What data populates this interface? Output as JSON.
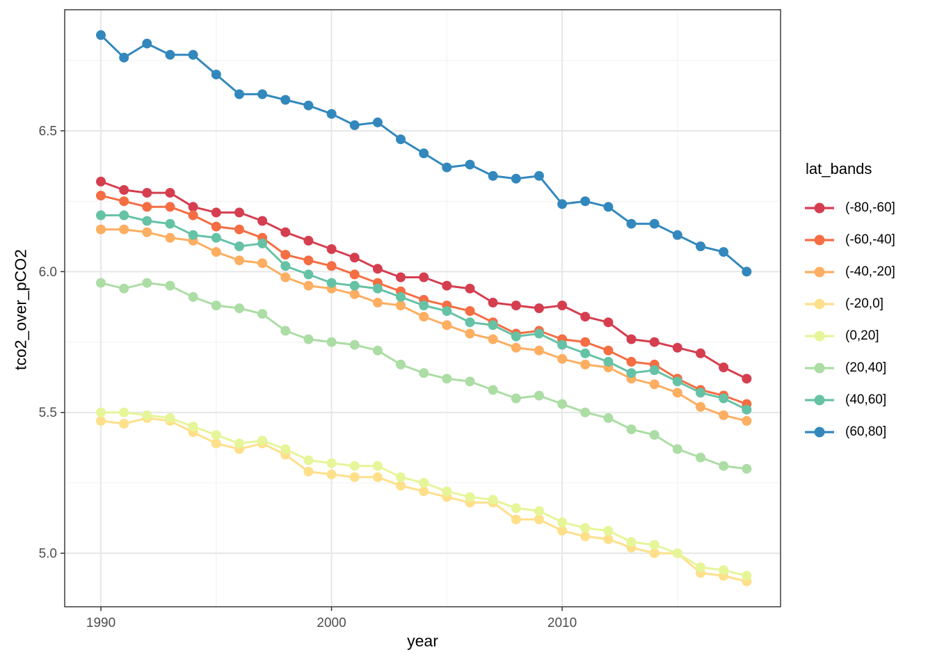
{
  "chart_data": {
    "type": "line",
    "title": "",
    "xlabel": "year",
    "ylabel": "tco2_over_pCO2",
    "legend_title": "lat_bands",
    "legend_position": "right",
    "grid": true,
    "marker": "circle",
    "xlim": [
      1988.43,
      2019.47
    ],
    "ylim": [
      4.81,
      6.93
    ],
    "x_ticks": [
      1990,
      2000,
      2010
    ],
    "x_tick_labels": [
      "1990",
      "2000",
      "2010"
    ],
    "x_minor": [
      1995,
      2005,
      2015
    ],
    "y_ticks": [
      5.0,
      5.5,
      6.0,
      6.5
    ],
    "y_tick_labels": [
      "5.0",
      "5.5",
      "6.0",
      "6.5"
    ],
    "y_minor": [
      5.25,
      5.75,
      6.25,
      6.75
    ],
    "x": [
      1990,
      1991,
      1992,
      1993,
      1994,
      1995,
      1996,
      1997,
      1998,
      1999,
      2000,
      2001,
      2002,
      2003,
      2004,
      2005,
      2006,
      2007,
      2008,
      2009,
      2010,
      2011,
      2012,
      2013,
      2014,
      2015,
      2016,
      2017,
      2018
    ],
    "series": [
      {
        "name": "(-80,-60]",
        "color": "#d53e4f",
        "values": [
          6.32,
          6.29,
          6.28,
          6.28,
          6.23,
          6.21,
          6.21,
          6.18,
          6.14,
          6.11,
          6.08,
          6.05,
          6.01,
          5.98,
          5.98,
          5.95,
          5.94,
          5.89,
          5.88,
          5.87,
          5.88,
          5.84,
          5.82,
          5.76,
          5.75,
          5.73,
          5.71,
          5.66,
          5.62
        ]
      },
      {
        "name": "(-60,-40]",
        "color": "#f46d43",
        "values": [
          6.27,
          6.25,
          6.23,
          6.23,
          6.2,
          6.16,
          6.15,
          6.12,
          6.06,
          6.04,
          6.02,
          5.99,
          5.96,
          5.93,
          5.9,
          5.88,
          5.86,
          5.82,
          5.78,
          5.79,
          5.76,
          5.75,
          5.72,
          5.68,
          5.67,
          5.62,
          5.58,
          5.56,
          5.53
        ]
      },
      {
        "name": "(-40,-20]",
        "color": "#fdae61",
        "values": [
          6.15,
          6.15,
          6.14,
          6.12,
          6.11,
          6.07,
          6.04,
          6.03,
          5.98,
          5.95,
          5.94,
          5.92,
          5.89,
          5.88,
          5.84,
          5.81,
          5.78,
          5.76,
          5.73,
          5.72,
          5.69,
          5.67,
          5.66,
          5.62,
          5.6,
          5.57,
          5.52,
          5.49,
          5.47
        ]
      },
      {
        "name": "(-20,0]",
        "color": "#fee08b",
        "values": [
          5.47,
          5.46,
          5.48,
          5.47,
          5.43,
          5.39,
          5.37,
          5.39,
          5.35,
          5.29,
          5.28,
          5.27,
          5.27,
          5.24,
          5.22,
          5.2,
          5.18,
          5.18,
          5.12,
          5.12,
          5.08,
          5.06,
          5.05,
          5.02,
          5.0,
          5.0,
          4.93,
          4.92,
          4.9
        ]
      },
      {
        "name": "(0,20]",
        "color": "#e6f598",
        "values": [
          5.5,
          5.5,
          5.49,
          5.48,
          5.45,
          5.42,
          5.39,
          5.4,
          5.37,
          5.33,
          5.32,
          5.31,
          5.31,
          5.27,
          5.25,
          5.22,
          5.2,
          5.19,
          5.16,
          5.15,
          5.11,
          5.09,
          5.08,
          5.04,
          5.03,
          5.0,
          4.95,
          4.94,
          4.92
        ]
      },
      {
        "name": "(20,40]",
        "color": "#abdda4",
        "values": [
          5.96,
          5.94,
          5.96,
          5.95,
          5.91,
          5.88,
          5.87,
          5.85,
          5.79,
          5.76,
          5.75,
          5.74,
          5.72,
          5.67,
          5.64,
          5.62,
          5.61,
          5.58,
          5.55,
          5.56,
          5.53,
          5.5,
          5.48,
          5.44,
          5.42,
          5.37,
          5.34,
          5.31,
          5.3
        ]
      },
      {
        "name": "(40,60]",
        "color": "#66c2a5",
        "values": [
          6.2,
          6.2,
          6.18,
          6.17,
          6.13,
          6.12,
          6.09,
          6.1,
          6.02,
          5.99,
          5.96,
          5.95,
          5.94,
          5.91,
          5.88,
          5.86,
          5.82,
          5.81,
          5.77,
          5.78,
          5.74,
          5.71,
          5.68,
          5.64,
          5.65,
          5.61,
          5.57,
          5.55,
          5.51
        ]
      },
      {
        "name": "(60,80]",
        "color": "#3288bd",
        "values": [
          6.84,
          6.76,
          6.81,
          6.77,
          6.77,
          6.7,
          6.63,
          6.63,
          6.61,
          6.59,
          6.56,
          6.52,
          6.53,
          6.47,
          6.42,
          6.37,
          6.38,
          6.34,
          6.33,
          6.34,
          6.24,
          6.25,
          6.23,
          6.17,
          6.17,
          6.13,
          6.09,
          6.07,
          6.0
        ]
      }
    ],
    "style": {
      "panel_border": "#3c3c3c",
      "grid_major": "#e6e6e6",
      "grid_minor": "#f0f0f0",
      "tick_color": "#333333",
      "tick_text_color": "#4d4d4d",
      "line_width": 3,
      "point_radius": 7
    }
  }
}
